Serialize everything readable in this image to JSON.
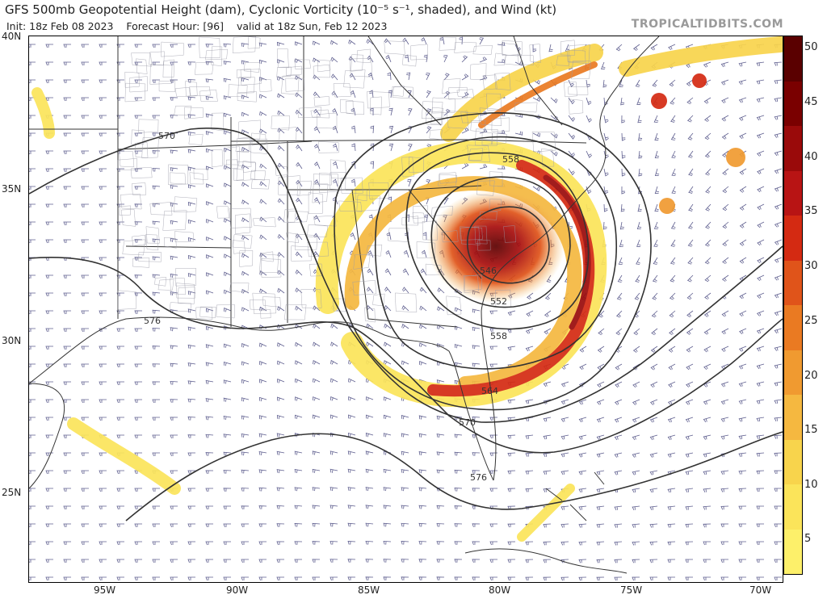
{
  "header": {
    "title": "GFS 500mb Geopotential Height (dam), Cyclonic Vorticity (10⁻⁵ s⁻¹, shaded), and Wind (kt)",
    "init": "Init: 18z Feb 08 2023",
    "forecast_hour": "Forecast Hour: [96]",
    "valid": "valid at 18z Sun, Feb 12 2023",
    "brand": "TROPICALTIDBITS.COM"
  },
  "axes": {
    "lat_labels": [
      "40N",
      "35N",
      "30N",
      "25N"
    ],
    "lon_labels": [
      "95W",
      "90W",
      "85W",
      "80W",
      "75W",
      "70W"
    ]
  },
  "contours": {
    "labels": [
      "570",
      "576",
      "558",
      "546",
      "552",
      "558",
      "564",
      "570",
      "576"
    ],
    "color": "#333333"
  },
  "colorbar": {
    "ticks": [
      "50",
      "45",
      "40",
      "35",
      "30",
      "25",
      "20",
      "15",
      "10",
      "5"
    ],
    "colors": [
      "#5a0000",
      "#7a0000",
      "#9a0a0a",
      "#b81414",
      "#d42a12",
      "#e0541a",
      "#ea7a22",
      "#f09a30",
      "#f5b840",
      "#f8d44c",
      "#fbe45a",
      "#fdf06a"
    ]
  },
  "map": {
    "land_color": "#ffffff",
    "line_color": "#333333",
    "wind_barb_color": "#2a2a6a",
    "vorticity_center_color": "#7a0000"
  }
}
